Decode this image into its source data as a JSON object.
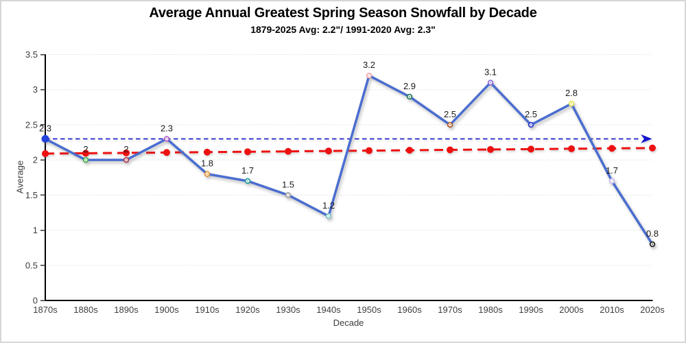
{
  "page": {
    "background": "#ffffff",
    "border_color": "#d6d6d6"
  },
  "chart_data": {
    "type": "line",
    "title": "Average Annual Greatest Spring Season Snowfall by Decade",
    "subtitle": "1879-2025 Avg: 2.2\"/ 1991-2020 Avg: 2.3\"",
    "xlabel": "Decade",
    "ylabel": "Average",
    "ylim": [
      0,
      3.5
    ],
    "ytick_step": 0.5,
    "ytick_labels": [
      "0",
      "0.5",
      "1",
      "1.5",
      "2",
      "2.5",
      "3",
      "3.5"
    ],
    "grid": "horizontal-dotted",
    "legend": "none",
    "series_color": "#4a6dd0",
    "categories": [
      "1870s",
      "1880s",
      "1890s",
      "1900s",
      "1910s",
      "1920s",
      "1930s",
      "1940s",
      "1950s",
      "1960s",
      "1970s",
      "1980s",
      "1990s",
      "2000s",
      "2010s",
      "2020s"
    ],
    "values": [
      2.3,
      2,
      2,
      2.3,
      1.8,
      1.7,
      1.5,
      1.2,
      3.2,
      2.9,
      2.5,
      3.1,
      2.5,
      2.8,
      1.7,
      0.8
    ],
    "points": [
      {
        "decade": "1870s",
        "value": 2.3,
        "label": "2.3",
        "marker_color": "#2244dd",
        "marker_style": "filled"
      },
      {
        "decade": "1880s",
        "value": 2.0,
        "label": "2",
        "marker_color": "#3faf46",
        "marker_style": "open"
      },
      {
        "decade": "1890s",
        "value": 2.0,
        "label": "2",
        "marker_color": "#aa3a4a",
        "marker_style": "open"
      },
      {
        "decade": "1900s",
        "value": 2.3,
        "label": "2.3",
        "marker_color": "#b060c8",
        "marker_style": "open"
      },
      {
        "decade": "1910s",
        "value": 1.8,
        "label": "1.8",
        "marker_color": "#e8922e",
        "marker_style": "open"
      },
      {
        "decade": "1920s",
        "value": 1.7,
        "label": "1.7",
        "marker_color": "#2a9d9d",
        "marker_style": "open"
      },
      {
        "decade": "1930s",
        "value": 1.5,
        "label": "1.5",
        "marker_color": "#9f9f9f",
        "marker_style": "open"
      },
      {
        "decade": "1940s",
        "value": 1.2,
        "label": "1.2",
        "marker_color": "#7cc4c4",
        "marker_style": "open"
      },
      {
        "decade": "1950s",
        "value": 3.2,
        "label": "3.2",
        "marker_color": "#efa6ae",
        "marker_style": "open"
      },
      {
        "decade": "1960s",
        "value": 2.9,
        "label": "2.9",
        "marker_color": "#2c7a60",
        "marker_style": "open"
      },
      {
        "decade": "1970s",
        "value": 2.5,
        "label": "2.5",
        "marker_color": "#b05a2a",
        "marker_style": "open"
      },
      {
        "decade": "1980s",
        "value": 3.1,
        "label": "3.1",
        "marker_color": "#8f6fd8",
        "marker_style": "open"
      },
      {
        "decade": "1990s",
        "value": 2.5,
        "label": "2.5",
        "marker_color": "#2436cc",
        "marker_style": "open"
      },
      {
        "decade": "2000s",
        "value": 2.8,
        "label": "2.8",
        "marker_color": "#e3e34e",
        "marker_style": "open"
      },
      {
        "decade": "2010s",
        "value": 1.7,
        "label": "1.7",
        "marker_color": "#c6bee9",
        "marker_style": "open"
      },
      {
        "decade": "2020s",
        "value": 0.8,
        "label": "0.8",
        "marker_color": "#222222",
        "marker_style": "open"
      }
    ],
    "reference_line": {
      "name": "1991-2020 average",
      "value": 2.3,
      "color": "#1414d0",
      "style": "dashed",
      "arrow_end": true
    },
    "trend_line": {
      "name": "linear trend",
      "start_value": 2.09,
      "end_value": 2.17,
      "color": "#ee1111",
      "style": "dashed",
      "point_markers": true
    }
  }
}
